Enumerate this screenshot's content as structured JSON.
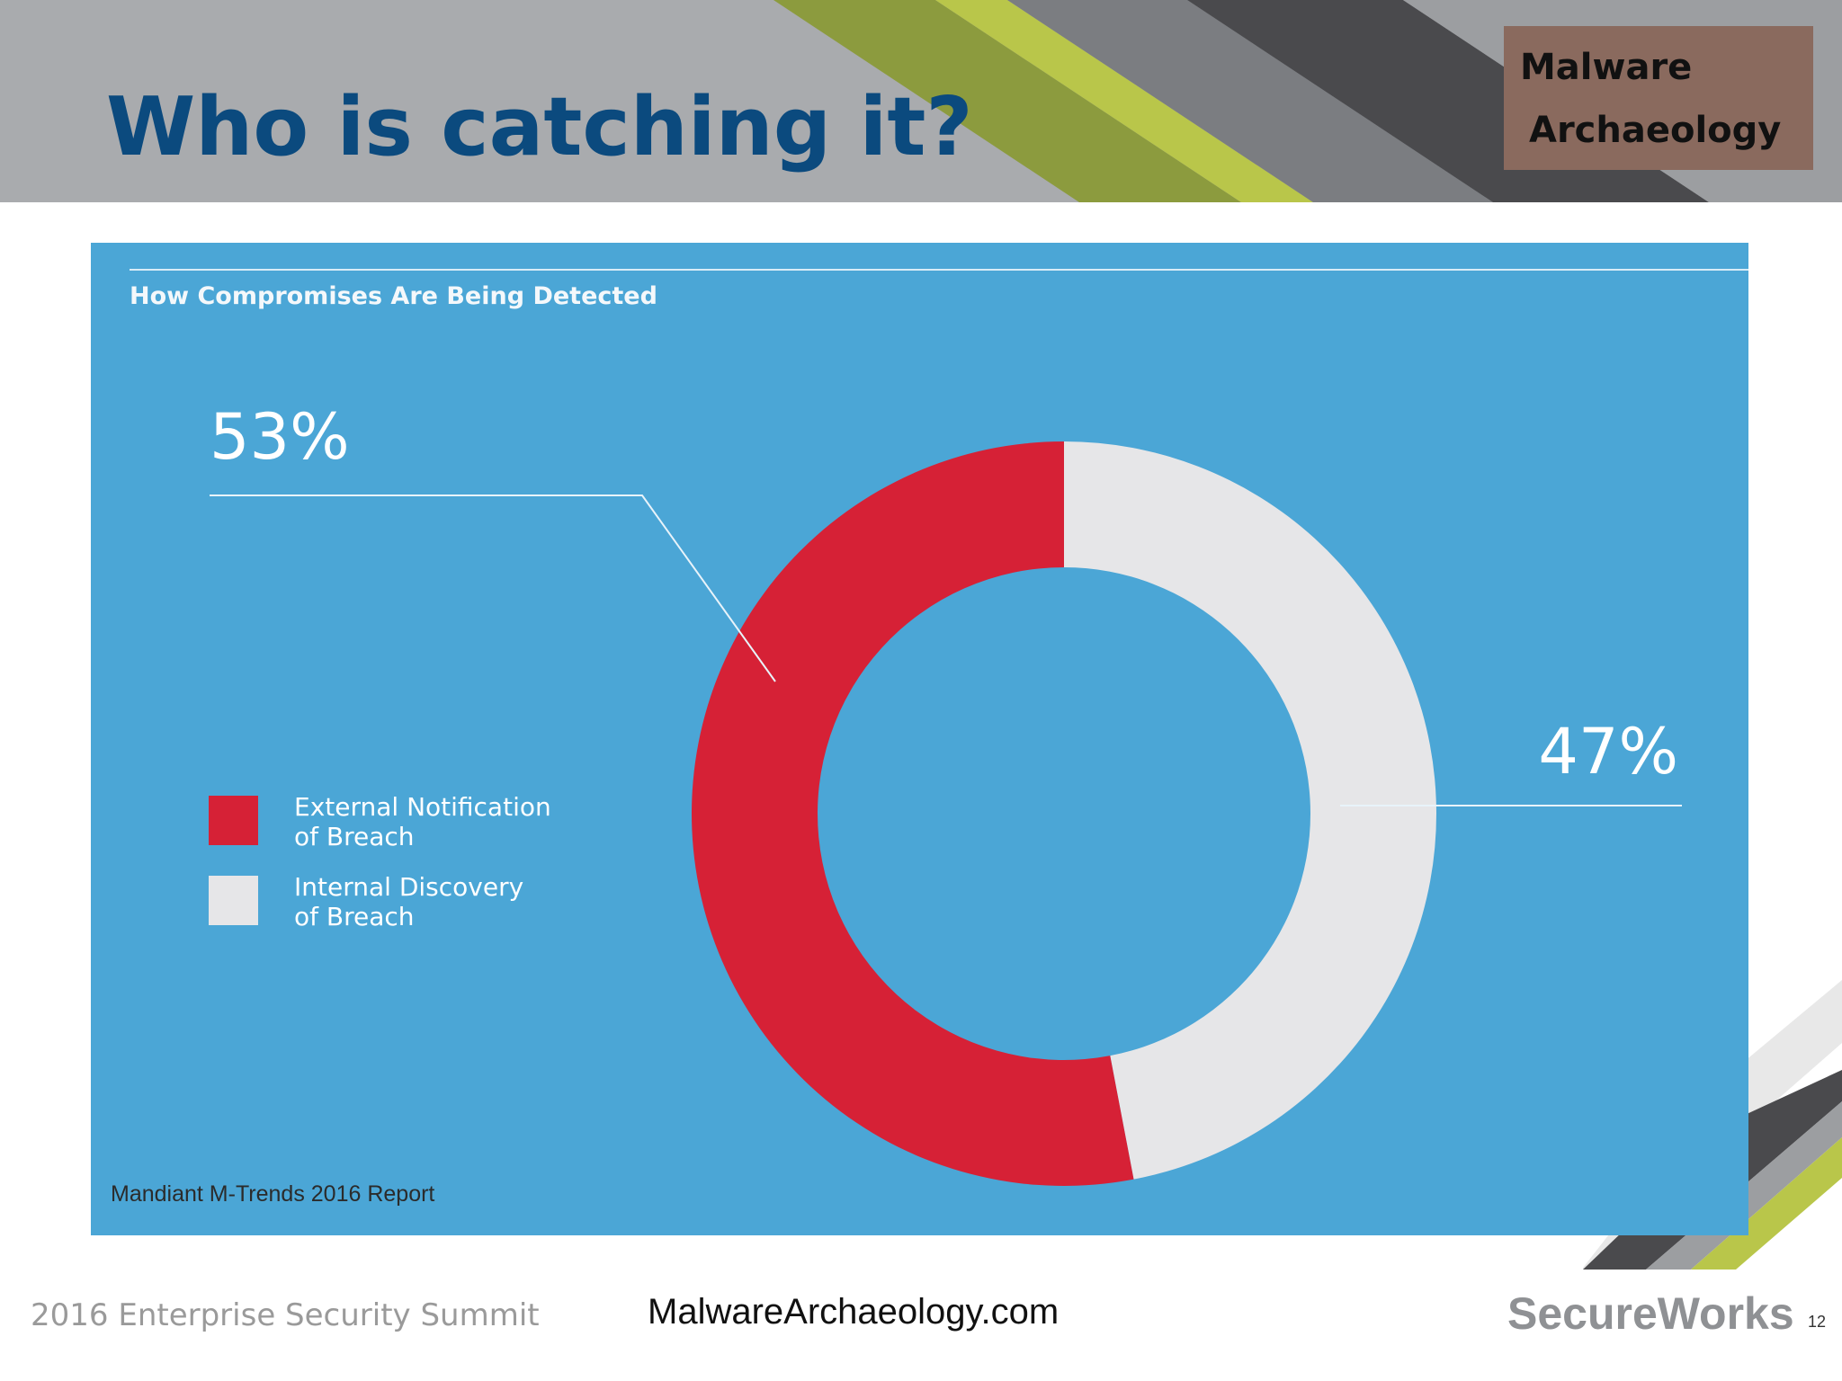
{
  "header": {
    "title": "Who is catching it?",
    "logo": [
      "Malware",
      "Archaeology"
    ]
  },
  "chart_data": {
    "type": "donut",
    "title": "How Compromises Are Being Detected",
    "categories": [
      "External Notification\nof Breach",
      "Internal Discovery\nof Breach"
    ],
    "values": [
      53,
      47
    ],
    "value_labels": [
      "53%",
      "47%"
    ],
    "colors": [
      "#d62136",
      "#e6e6e8"
    ]
  },
  "source": "Mandiant M-Trends 2016 Report",
  "footer": {
    "event": "2016 Enterprise Security Summit",
    "website": "MalwareArchaeology.com",
    "brand": "SecureWorks",
    "page": 12
  }
}
